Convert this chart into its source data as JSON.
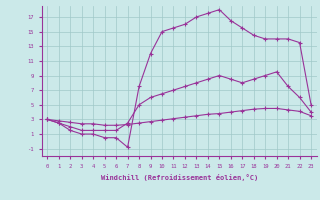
{
  "background_color": "#cbe9e9",
  "grid_color": "#a0c8c8",
  "line_color": "#993399",
  "marker": "+",
  "xlim": [
    -0.5,
    23.5
  ],
  "ylim": [
    -2,
    18.5
  ],
  "xticks": [
    0,
    1,
    2,
    3,
    4,
    5,
    6,
    7,
    8,
    9,
    10,
    11,
    12,
    13,
    14,
    15,
    16,
    17,
    18,
    19,
    20,
    21,
    22,
    23
  ],
  "yticks": [
    -1,
    1,
    3,
    5,
    7,
    9,
    11,
    13,
    15,
    17
  ],
  "xlabel": "Windchill (Refroidissement éolien,°C)",
  "line1_x": [
    0,
    1,
    2,
    3,
    4,
    5,
    6,
    7,
    8,
    9,
    10,
    11,
    12,
    13,
    14,
    15,
    16,
    17,
    18,
    19,
    20,
    21,
    22,
    23
  ],
  "line1_y": [
    3,
    2.5,
    1.5,
    1.0,
    1.0,
    0.5,
    0.5,
    -0.8,
    7.5,
    12.0,
    15.0,
    15.5,
    16.0,
    17.0,
    17.5,
    18.0,
    16.5,
    15.5,
    14.5,
    14.0,
    14.0,
    14.0,
    13.5,
    5.0
  ],
  "line2_x": [
    0,
    1,
    2,
    3,
    4,
    5,
    6,
    7,
    8,
    9,
    10,
    11,
    12,
    13,
    14,
    15,
    16,
    17,
    18,
    19,
    20,
    21,
    22,
    23
  ],
  "line2_y": [
    3,
    2.5,
    2.0,
    1.5,
    1.5,
    1.5,
    1.5,
    2.5,
    5.0,
    6.0,
    6.5,
    7.0,
    7.5,
    8.0,
    8.5,
    9.0,
    8.5,
    8.0,
    8.5,
    9.0,
    9.5,
    7.5,
    6.0,
    4.0
  ],
  "line3_x": [
    0,
    1,
    2,
    3,
    4,
    5,
    6,
    7,
    8,
    9,
    10,
    11,
    12,
    13,
    14,
    15,
    16,
    17,
    18,
    19,
    20,
    21,
    22,
    23
  ],
  "line3_y": [
    3,
    2.8,
    2.6,
    2.4,
    2.4,
    2.2,
    2.2,
    2.3,
    2.5,
    2.7,
    2.9,
    3.1,
    3.3,
    3.5,
    3.7,
    3.8,
    4.0,
    4.2,
    4.4,
    4.5,
    4.5,
    4.3,
    4.1,
    3.5
  ]
}
